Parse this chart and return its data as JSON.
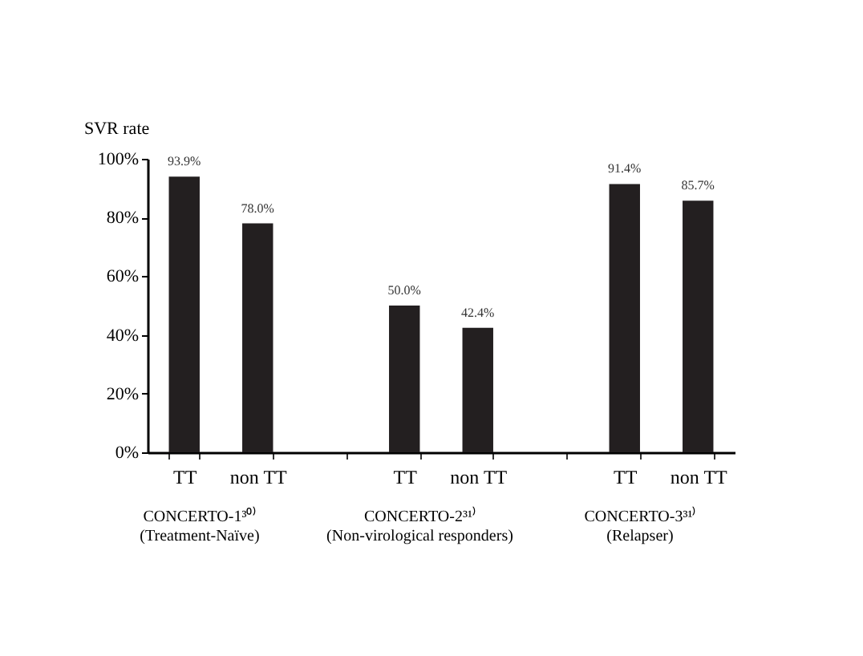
{
  "chart_data": {
    "type": "bar",
    "ylabel": "SVR rate",
    "categories": [
      "TT",
      "non TT",
      null,
      "TT",
      "non TT",
      null,
      "TT",
      "non TT"
    ],
    "values": [
      93.9,
      78.0,
      null,
      50.0,
      42.4,
      null,
      91.4,
      85.7
    ],
    "value_labels": [
      "93.9%",
      "78.0%",
      null,
      "50.0%",
      "42.4%",
      null,
      "91.4%",
      "85.7%"
    ],
    "color": "#231f20",
    "ylim": [
      0,
      100
    ],
    "yticks": [
      {
        "value": 0,
        "label": "0%"
      },
      {
        "value": 20,
        "label": "20%"
      },
      {
        "value": 40,
        "label": "40%"
      },
      {
        "value": 60,
        "label": "60%"
      },
      {
        "value": 80,
        "label": "80%"
      },
      {
        "value": 100,
        "label": "100%"
      }
    ],
    "annotations": [
      "CONCERTO-1³⁰⁾\n(Treatment-Naïve)",
      "CONCERTO-2³¹⁾\n(Non-virological responders)",
      "CONCERTO-3³¹⁾\n(Relapser)"
    ],
    "grid": false
  }
}
